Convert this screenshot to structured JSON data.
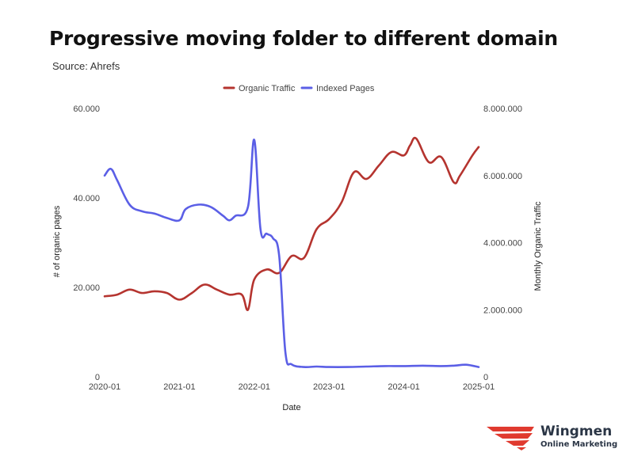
{
  "title": "Progressive moving folder to different domain",
  "source": "Source: Ahrefs",
  "brand": {
    "name": "Wingmen",
    "tagline": "Online Marketing",
    "logo_icon": "wing-swoosh-icon",
    "color": "#e03a2f"
  },
  "chart_data": {
    "type": "line",
    "x_axis": {
      "label": "Date",
      "range": [
        "2020-01",
        "2025-01"
      ],
      "ticks": [
        "2020-01",
        "2021-01",
        "2022-01",
        "2023-01",
        "2024-01",
        "2025-01"
      ]
    },
    "y_left": {
      "label": "# of organic pages",
      "range": [
        0,
        60000
      ],
      "ticks": [
        0,
        20000,
        40000,
        60000
      ],
      "tick_labels": [
        "0",
        "20.000",
        "40.000",
        "60.000"
      ]
    },
    "y_right": {
      "label": "Monthly Organic Traffic",
      "range": [
        0,
        8000000
      ],
      "ticks": [
        0,
        2000000,
        4000000,
        6000000,
        8000000
      ],
      "tick_labels": [
        "0",
        "2.000.000",
        "4.000.000",
        "6.000.000",
        "8.000.000"
      ]
    },
    "grid": false,
    "legend_position": "top-center",
    "series": [
      {
        "name": "Organic Traffic",
        "axis": "right",
        "color": "#b5342f",
        "x": [
          "2020-01",
          "2020-03",
          "2020-05",
          "2020-07",
          "2020-09",
          "2020-11",
          "2021-01",
          "2021-03",
          "2021-05",
          "2021-07",
          "2021-09",
          "2021-11",
          "2021-12",
          "2022-01",
          "2022-03",
          "2022-05",
          "2022-07",
          "2022-09",
          "2022-11",
          "2023-01",
          "2023-03",
          "2023-05",
          "2023-07",
          "2023-09",
          "2023-11",
          "2024-01",
          "2024-02",
          "2024-03",
          "2024-05",
          "2024-07",
          "2024-09",
          "2024-10",
          "2024-12",
          "2025-01"
        ],
        "values": [
          2400000,
          2450000,
          2600000,
          2500000,
          2550000,
          2500000,
          2300000,
          2500000,
          2750000,
          2600000,
          2450000,
          2450000,
          2000000,
          2900000,
          3200000,
          3100000,
          3600000,
          3550000,
          4400000,
          4700000,
          5200000,
          6100000,
          5900000,
          6300000,
          6700000,
          6600000,
          6900000,
          7100000,
          6400000,
          6550000,
          5800000,
          6000000,
          6600000,
          6850000
        ]
      },
      {
        "name": "Indexed Pages",
        "axis": "left",
        "color": "#5b5fe6",
        "x": [
          "2020-01",
          "2020-02",
          "2020-03",
          "2020-05",
          "2020-07",
          "2020-09",
          "2020-11",
          "2021-01",
          "2021-02",
          "2021-04",
          "2021-06",
          "2021-08",
          "2021-09",
          "2021-10",
          "2021-12",
          "2022-01",
          "2022-02",
          "2022-03",
          "2022-04",
          "2022-05",
          "2022-06",
          "2022-07",
          "2022-09",
          "2022-11",
          "2023-01",
          "2023-04",
          "2023-07",
          "2023-10",
          "2024-01",
          "2024-04",
          "2024-07",
          "2024-09",
          "2024-11",
          "2025-01"
        ],
        "values": [
          45000,
          46500,
          44000,
          38500,
          37000,
          36500,
          35500,
          35000,
          37500,
          38500,
          38000,
          36000,
          35000,
          36000,
          38000,
          53000,
          33000,
          32000,
          31000,
          27000,
          5500,
          2800,
          2200,
          2300,
          2200,
          2200,
          2300,
          2400,
          2400,
          2500,
          2400,
          2500,
          2700,
          2200
        ]
      }
    ]
  }
}
